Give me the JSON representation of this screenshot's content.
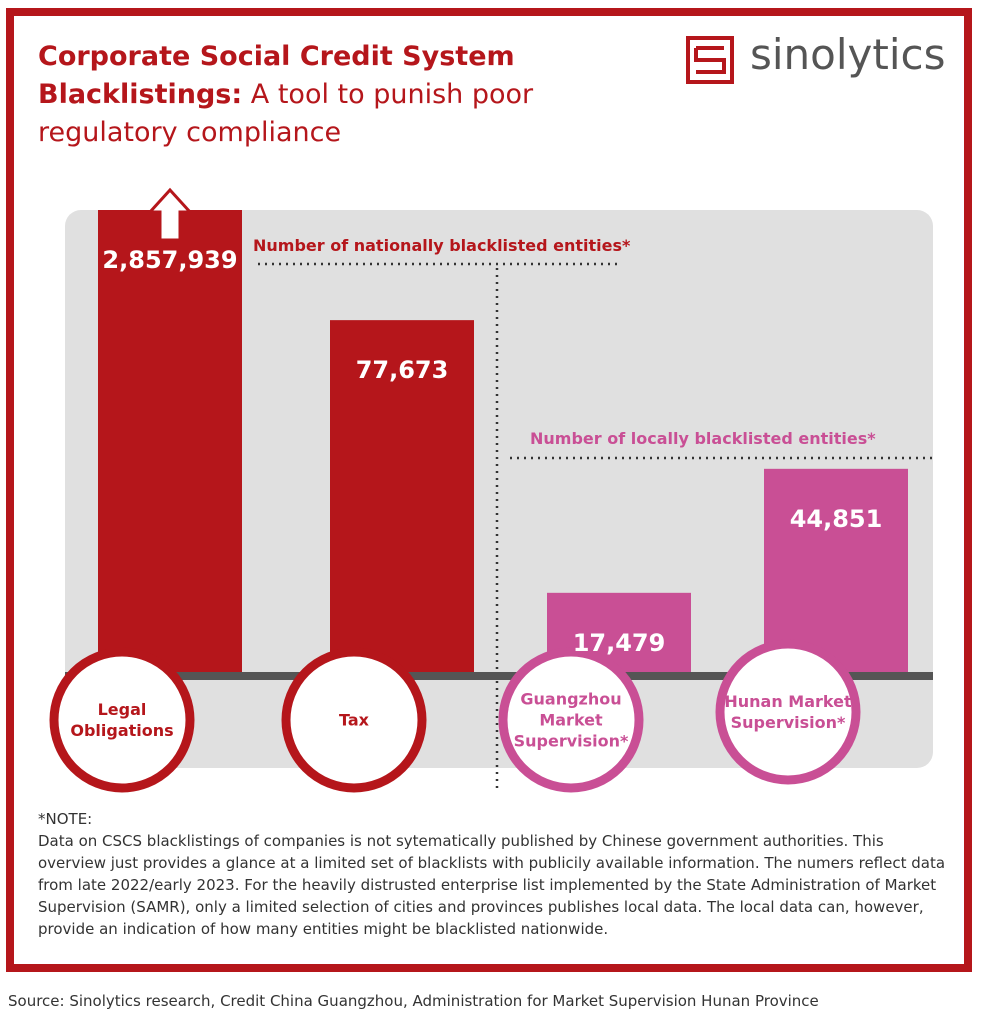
{
  "header": {
    "title_bold": "Corporate Social Credit System Blacklistings:",
    "title_rest": "A tool to punish poor regulatory compliance",
    "logo": "sinolytics"
  },
  "chart_data": {
    "type": "bar",
    "categories": [
      "Legal Obligations",
      "Tax",
      "Guangzhou Market Supervision*",
      "Hunan Market Supervision*"
    ],
    "values": [
      2857939,
      77673,
      17479,
      44851
    ],
    "value_labels": [
      "2,857,939",
      "77,673",
      "17,479",
      "44,851"
    ],
    "colors": [
      "#b5161b",
      "#b5161b",
      "#c94f95",
      "#c94f95"
    ],
    "ylim": [
      0,
      100000
    ],
    "annotations": [
      "Number of nationally blacklisted entities*",
      "Number of locally blacklisted entities*"
    ]
  },
  "note": {
    "heading": "*NOTE:",
    "text": "Data on CSCS blacklistings of companies is not sytematically published by Chinese government authorities. This overview just provides a glance at a limited set of blacklists with publicily available information. The numers reflect data from late 2022/early 2023. For the heavily distrusted enterprise list implemented by the State Administration of Market Supervision (SAMR), only a limited selection of cities and provinces publishes local data. The local data can, however, provide an indication of how many entities might be blacklisted nationwide."
  },
  "source": "Source: Sinolytics research, Credit China Guangzhou, Administration for Market Supervision Hunan Province"
}
